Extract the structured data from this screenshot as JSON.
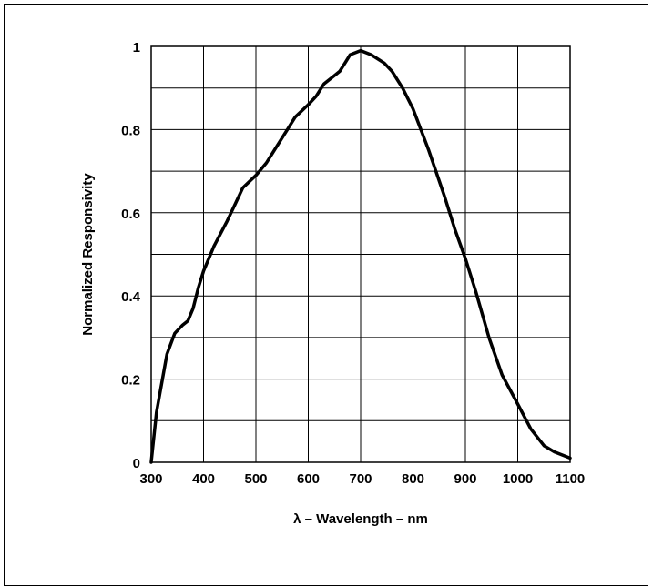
{
  "chart_data": {
    "type": "line",
    "title": "",
    "xlabel": "λ – Wavelength – nm",
    "ylabel": "Normalized Responsivity",
    "xlim": [
      300,
      1100
    ],
    "ylim": [
      0,
      1
    ],
    "grid": true,
    "x_ticks": [
      "300",
      "400",
      "500",
      "600",
      "700",
      "800",
      "900",
      "1000",
      "1100"
    ],
    "y_ticks": [
      "0",
      "0.2",
      "0.4",
      "0.6",
      "0.8",
      "1"
    ],
    "colors": {
      "line": "#000000",
      "grid": "#000000",
      "background": "#ffffff"
    },
    "series": [
      {
        "x": [
          300,
          310,
          330,
          345,
          360,
          370,
          380,
          390,
          400,
          420,
          445,
          460,
          475,
          500,
          520,
          540,
          560,
          575,
          600,
          615,
          630,
          650,
          660,
          670,
          680,
          700,
          720,
          745,
          760,
          780,
          800,
          830,
          860,
          880,
          900,
          920,
          945,
          970,
          1000,
          1025,
          1050,
          1070,
          1090,
          1100
        ],
        "y": [
          0.0,
          0.12,
          0.26,
          0.31,
          0.33,
          0.34,
          0.37,
          0.42,
          0.46,
          0.52,
          0.58,
          0.62,
          0.66,
          0.69,
          0.72,
          0.76,
          0.8,
          0.83,
          0.86,
          0.88,
          0.91,
          0.93,
          0.94,
          0.96,
          0.98,
          0.99,
          0.98,
          0.96,
          0.94,
          0.9,
          0.85,
          0.75,
          0.64,
          0.56,
          0.49,
          0.41,
          0.3,
          0.21,
          0.14,
          0.08,
          0.04,
          0.025,
          0.015,
          0.01
        ]
      }
    ]
  }
}
